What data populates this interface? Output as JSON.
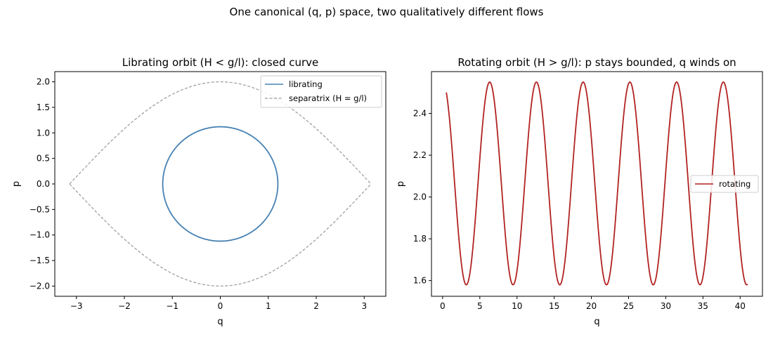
{
  "suptitle": "One canonical (q, p) space, two qualitatively different flows",
  "chart_data": [
    {
      "type": "line",
      "title": "Librating orbit (H < g/l): closed curve",
      "xlabel": "q",
      "ylabel": "p",
      "xlim": [
        -3.45,
        3.45
      ],
      "ylim": [
        -2.2,
        2.2
      ],
      "xticks": [
        -3,
        -2,
        -1,
        0,
        1,
        2,
        3
      ],
      "yticks": [
        -2.0,
        -1.5,
        -1.0,
        -0.5,
        0.0,
        0.5,
        1.0,
        1.5,
        2.0
      ],
      "xticklabels": [
        "−3",
        "−2",
        "−1",
        "0",
        "1",
        "2",
        "3"
      ],
      "yticklabels": [
        "−2.0",
        "−1.5",
        "−1.0",
        "−0.5",
        "0.0",
        "0.5",
        "1.0",
        "1.5",
        "2.0"
      ],
      "grid": false,
      "legend_position": "upper-right",
      "series": [
        {
          "name": "librating",
          "color": "#4682b4",
          "style": "solid",
          "description_of_curve": "closed orbit, q amplitude 1.2, p amplitude 1.12",
          "q_amplitude": 1.2,
          "p_amplitude": 1.12
        },
        {
          "name": "separatrix (H = g/l)",
          "color": "#999999",
          "style": "dashed",
          "p_peak": 2.0,
          "q_range": [
            -3.14159,
            3.14159
          ]
        }
      ]
    },
    {
      "type": "line",
      "title": "Rotating orbit (H > g/l): p stays bounded, q winds on",
      "xlabel": "q",
      "ylabel": "p",
      "xlim": [
        -1.5,
        43.0
      ],
      "ylim": [
        1.525,
        2.6
      ],
      "xticks": [
        0,
        5,
        10,
        15,
        20,
        25,
        30,
        35,
        40
      ],
      "yticks": [
        1.6,
        1.8,
        2.0,
        2.2,
        2.4
      ],
      "xticklabels": [
        "0",
        "5",
        "10",
        "15",
        "20",
        "25",
        "30",
        "35",
        "40"
      ],
      "yticklabels": [
        "1.6",
        "1.8",
        "2.0",
        "2.2",
        "2.4"
      ],
      "grid": false,
      "legend_position": "center-right",
      "series": [
        {
          "name": "rotating",
          "color": "#b22222",
          "style": "solid",
          "q_start": 0.5,
          "q_end": 41.0,
          "p_start": 2.5,
          "p_max": 2.55,
          "p_min": 1.58,
          "period_in_q": 6.283
        }
      ]
    }
  ]
}
